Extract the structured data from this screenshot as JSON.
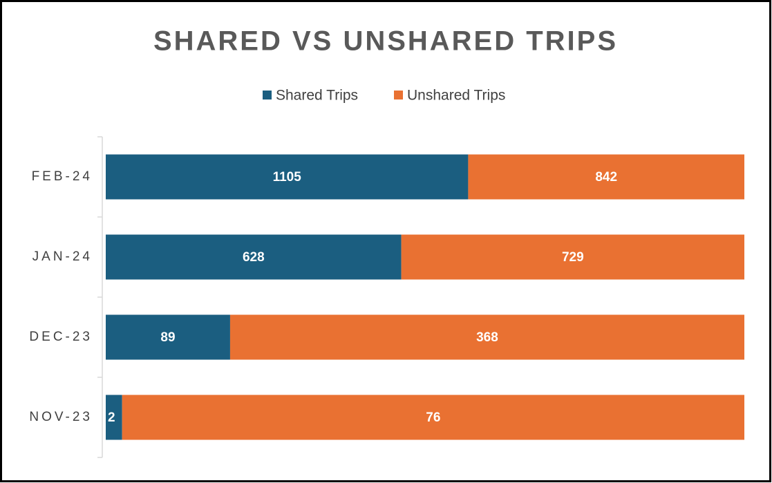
{
  "chart_data": {
    "type": "bar",
    "orientation": "horizontal",
    "stack": "percent",
    "title": "SHARED VS UNSHARED TRIPS",
    "categories": [
      "FEB-24",
      "JAN-24",
      "DEC-23",
      "NOV-23"
    ],
    "series": [
      {
        "name": "Shared Trips",
        "color": "#1b5e80",
        "values": [
          1105,
          628,
          89,
          2
        ]
      },
      {
        "name": "Unshared Trips",
        "color": "#e97132",
        "values": [
          842,
          729,
          368,
          76
        ]
      }
    ],
    "legend": "top"
  }
}
